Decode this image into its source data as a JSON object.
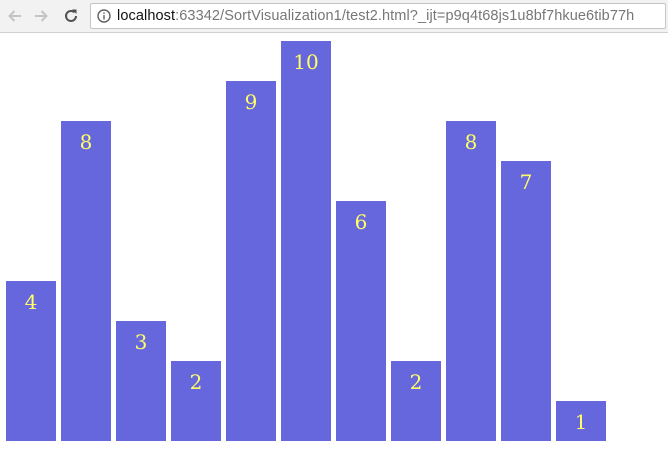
{
  "browser": {
    "url_host": "localhost",
    "url_rest": ":63342/SortVisualization1/test2.html?_ijt=p9q4t68js1u8bf7hkue6tib77h",
    "icons": {
      "back": "arrow-left-icon",
      "forward": "arrow-right-icon",
      "reload": "reload-icon",
      "info": "info-circle-icon"
    }
  },
  "chart_data": {
    "type": "bar",
    "values": [
      4,
      8,
      3,
      2,
      9,
      10,
      6,
      2,
      8,
      7,
      1
    ],
    "ylim": [
      0,
      10
    ],
    "bar_color": "#6666dd",
    "label_color": "#ffff66",
    "grid": false
  }
}
